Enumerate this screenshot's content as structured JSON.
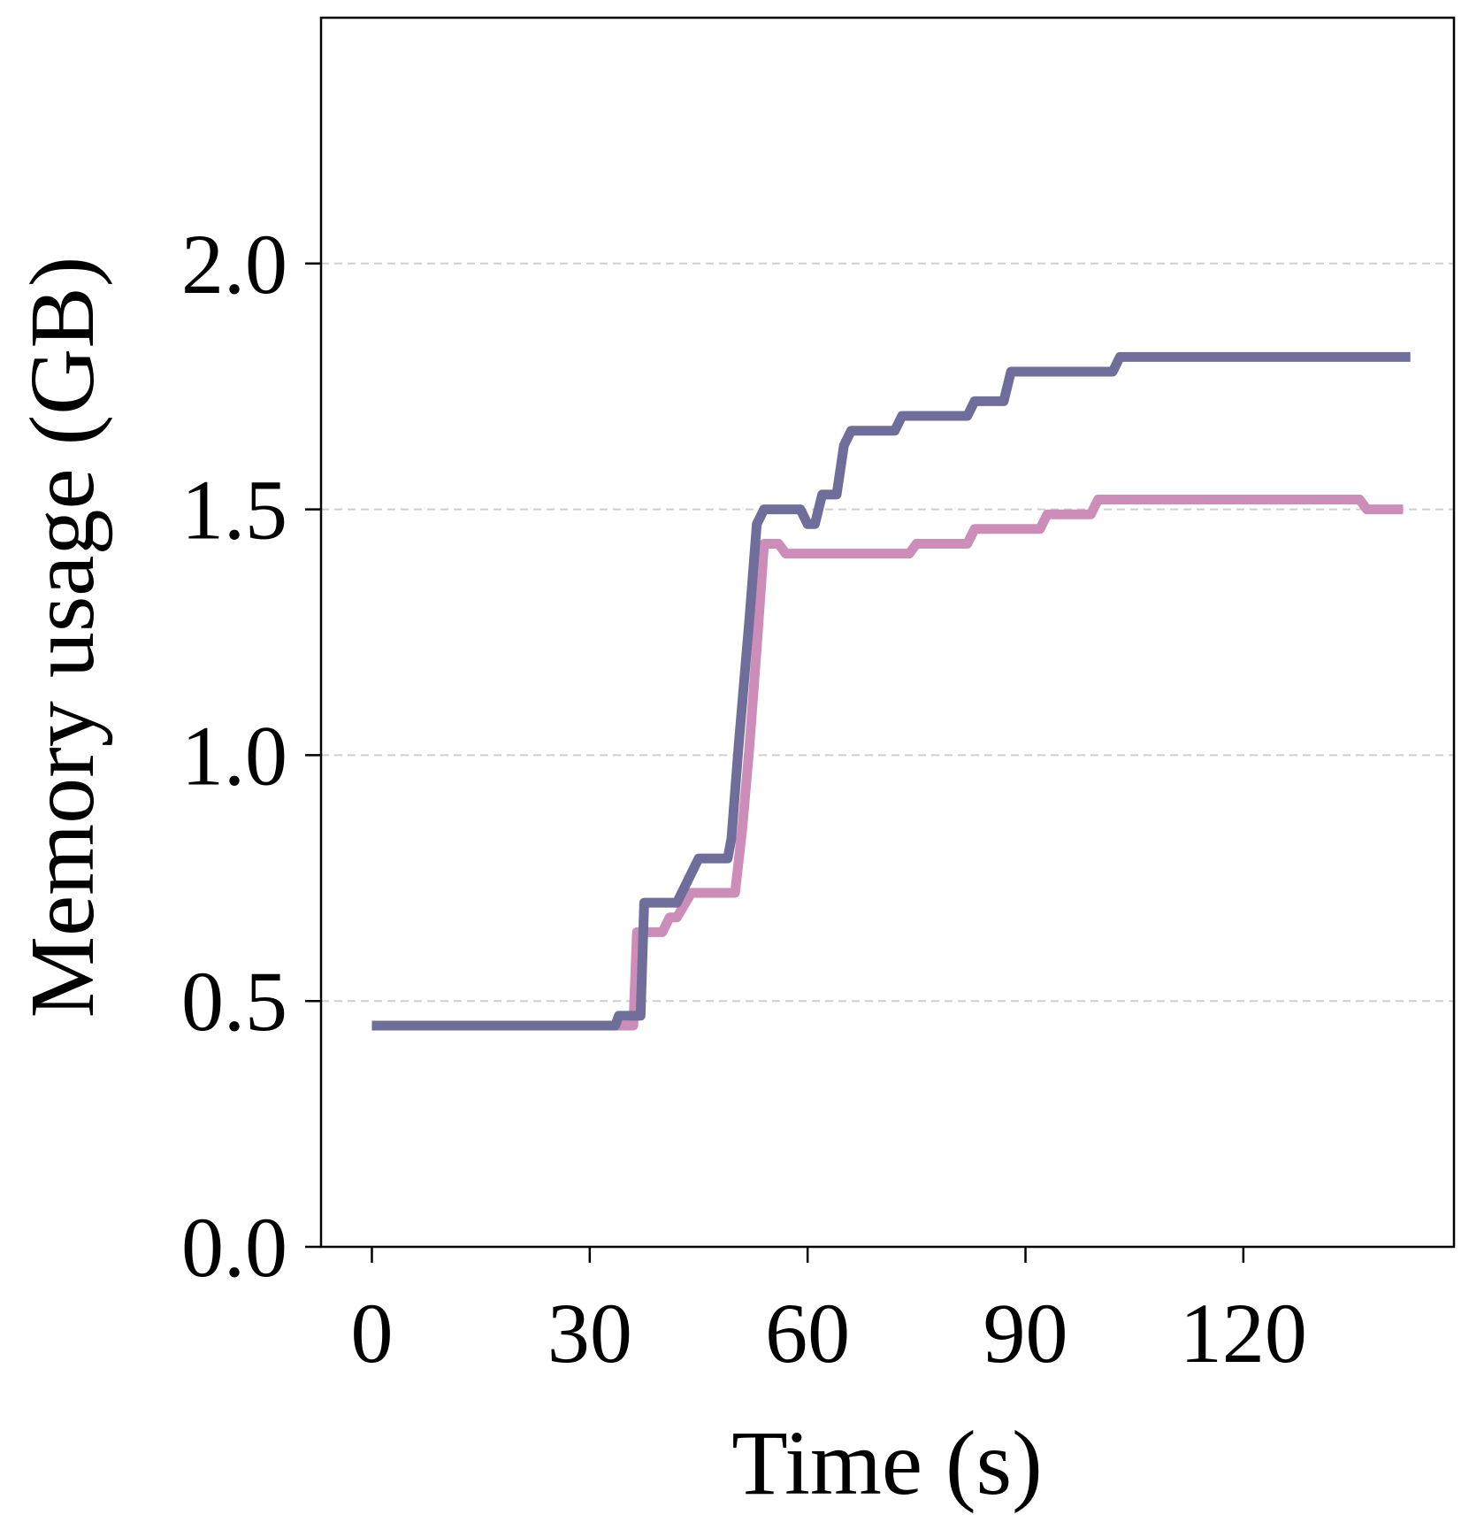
{
  "chart_data": {
    "type": "line",
    "title": "",
    "xlabel": "Time (s)",
    "ylabel": "Memory usage (GB)",
    "xlim": [
      -7,
      149
    ],
    "ylim": [
      0,
      2.5
    ],
    "xticks": [
      0,
      30,
      60,
      90,
      120
    ],
    "xtick_labels": [
      "0",
      "30",
      "60",
      "90",
      "120"
    ],
    "yticks": [
      0.0,
      0.5,
      1.0,
      1.5,
      2.0
    ],
    "ytick_labels": [
      "0.0",
      "0.5",
      "1.0",
      "1.5",
      "2.0"
    ],
    "grid": "horizontal dashed",
    "legend": "none",
    "series": [
      {
        "name": "series-pink",
        "color": "#cc8db8",
        "points": [
          [
            0,
            0.45
          ],
          [
            36,
            0.45
          ],
          [
            36.5,
            0.64
          ],
          [
            40,
            0.64
          ],
          [
            41,
            0.67
          ],
          [
            42,
            0.67
          ],
          [
            44,
            0.72
          ],
          [
            50,
            0.72
          ],
          [
            51,
            0.85
          ],
          [
            52,
            1.02
          ],
          [
            53,
            1.22
          ],
          [
            54,
            1.43
          ],
          [
            56,
            1.43
          ],
          [
            57,
            1.41
          ],
          [
            74,
            1.41
          ],
          [
            75,
            1.43
          ],
          [
            82,
            1.43
          ],
          [
            83,
            1.46
          ],
          [
            92,
            1.46
          ],
          [
            93,
            1.49
          ],
          [
            99,
            1.49
          ],
          [
            100,
            1.52
          ],
          [
            136,
            1.52
          ],
          [
            137,
            1.5
          ],
          [
            142,
            1.5
          ]
        ]
      },
      {
        "name": "series-purple",
        "color": "#6f6e9a",
        "points": [
          [
            0,
            0.45
          ],
          [
            33.5,
            0.45
          ],
          [
            34,
            0.47
          ],
          [
            37,
            0.47
          ],
          [
            37.5,
            0.7
          ],
          [
            42,
            0.7
          ],
          [
            45,
            0.79
          ],
          [
            49,
            0.79
          ],
          [
            49.5,
            0.83
          ],
          [
            50.5,
            1.02
          ],
          [
            52,
            1.28
          ],
          [
            53,
            1.47
          ],
          [
            54,
            1.5
          ],
          [
            59,
            1.5
          ],
          [
            60,
            1.47
          ],
          [
            61,
            1.47
          ],
          [
            62,
            1.53
          ],
          [
            64,
            1.53
          ],
          [
            65,
            1.63
          ],
          [
            66,
            1.66
          ],
          [
            72,
            1.66
          ],
          [
            73,
            1.69
          ],
          [
            82,
            1.69
          ],
          [
            83,
            1.72
          ],
          [
            87,
            1.72
          ],
          [
            88,
            1.78
          ],
          [
            102,
            1.78
          ],
          [
            103,
            1.81
          ],
          [
            143,
            1.81
          ]
        ]
      }
    ]
  }
}
